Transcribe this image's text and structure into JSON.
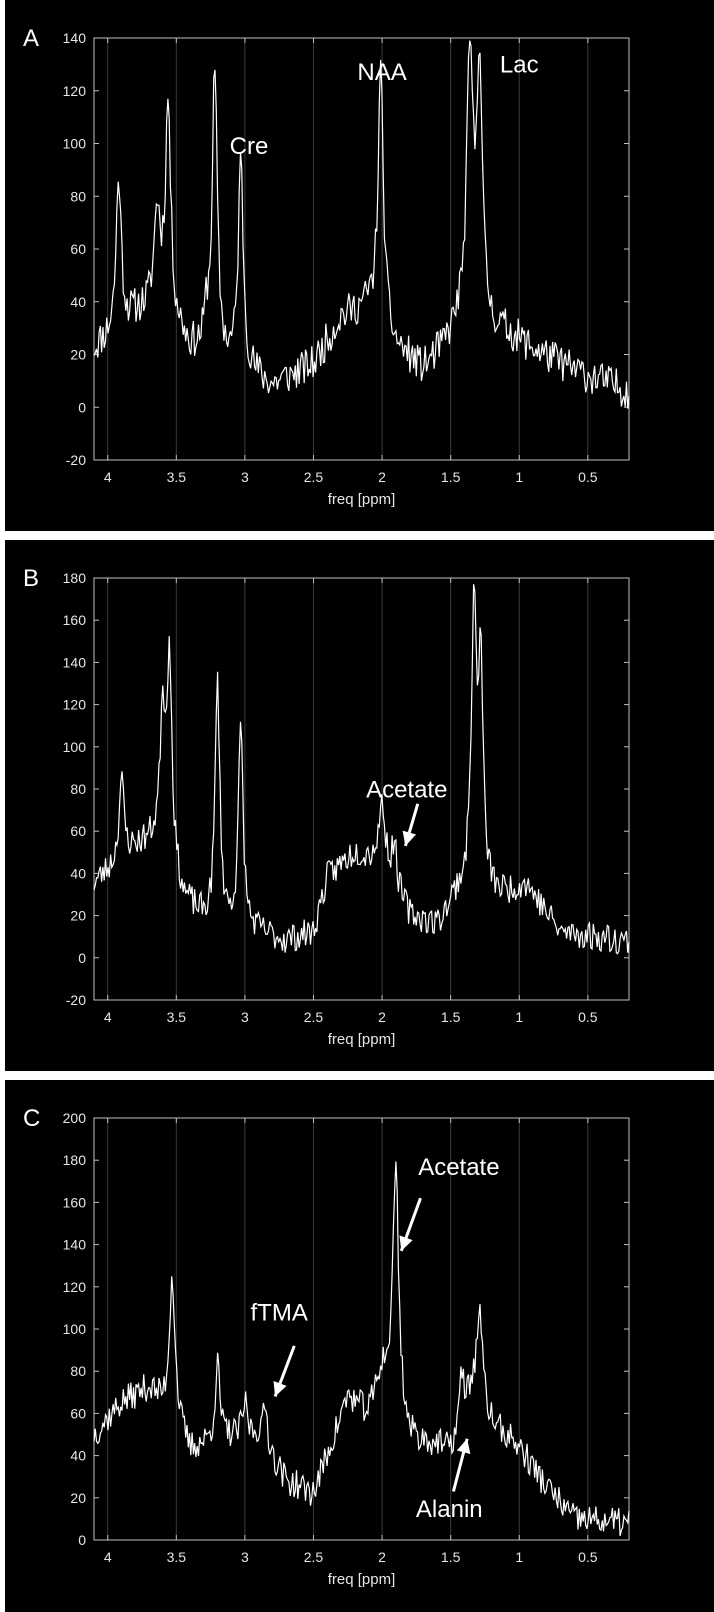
{
  "chart_data": [
    {
      "panel_label": "A",
      "type": "line",
      "xlabel": "freq [ppm]",
      "ylabel": "",
      "title": "",
      "x_reversed": true,
      "xlim": [
        0.2,
        4.1
      ],
      "ylim": [
        -20,
        140
      ],
      "xticks": [
        4,
        3.5,
        3,
        2.5,
        2,
        1.5,
        1,
        0.5
      ],
      "xtick_labels": [
        "4",
        "3.5",
        "3",
        "2.5",
        "2",
        "1.5",
        "1",
        "0.5"
      ],
      "yticks": [
        -20,
        0,
        20,
        40,
        60,
        80,
        100,
        120,
        140
      ],
      "ytick_labels": [
        "-20",
        "0",
        "20",
        "40",
        "60",
        "80",
        "100",
        "120",
        "140"
      ],
      "grid": "vertical",
      "line_color": "#ffffff",
      "baseline": [
        [
          4.1,
          22
        ],
        [
          3.8,
          35
        ],
        [
          3.6,
          40
        ],
        [
          3.4,
          22
        ],
        [
          3.0,
          14
        ],
        [
          2.8,
          8
        ],
        [
          2.5,
          16
        ],
        [
          2.3,
          34
        ],
        [
          2.1,
          38
        ],
        [
          1.9,
          22
        ],
        [
          1.7,
          14
        ],
        [
          1.55,
          22
        ],
        [
          1.45,
          30
        ],
        [
          1.1,
          28
        ],
        [
          0.9,
          22
        ],
        [
          0.6,
          14
        ],
        [
          0.2,
          6
        ]
      ],
      "peaks": [
        {
          "x": 3.92,
          "height": 58,
          "width": 0.022
        },
        {
          "x": 3.64,
          "height": 35,
          "width": 0.025
        },
        {
          "x": 3.56,
          "height": 78,
          "width": 0.022
        },
        {
          "x": 3.28,
          "height": 12,
          "width": 0.02
        },
        {
          "x": 3.22,
          "height": 108,
          "width": 0.022
        },
        {
          "x": 3.03,
          "height": 78,
          "width": 0.022
        },
        {
          "x": 2.01,
          "height": 95,
          "width": 0.024
        },
        {
          "x": 1.36,
          "height": 100,
          "width": 0.028
        },
        {
          "x": 1.29,
          "height": 100,
          "width": 0.024
        }
      ],
      "noise_amplitude": 7,
      "noise_seed": 11,
      "annotations": [
        {
          "text": "Cre",
          "x": 2.97,
          "y": 96
        },
        {
          "text": "NAA",
          "x": 2.0,
          "y": 124
        },
        {
          "text": "Lac",
          "x": 1.0,
          "y": 127
        }
      ]
    },
    {
      "panel_label": "B",
      "type": "line",
      "xlabel": "freq [ppm]",
      "ylabel": "",
      "title": "",
      "x_reversed": true,
      "xlim": [
        0.2,
        4.1
      ],
      "ylim": [
        -20,
        180
      ],
      "xticks": [
        4,
        3.5,
        3,
        2.5,
        2,
        1.5,
        1,
        0.5
      ],
      "xtick_labels": [
        "4",
        "3.5",
        "3",
        "2.5",
        "2",
        "1.5",
        "1",
        "0.5"
      ],
      "yticks": [
        -20,
        0,
        20,
        40,
        60,
        80,
        100,
        120,
        140,
        160,
        180
      ],
      "ytick_labels": [
        "-20",
        "0",
        "20",
        "40",
        "60",
        "80",
        "100",
        "120",
        "140",
        "160",
        "180"
      ],
      "grid": "vertical",
      "line_color": "#ffffff",
      "baseline": [
        [
          4.1,
          35
        ],
        [
          3.8,
          52
        ],
        [
          3.6,
          58
        ],
        [
          3.45,
          28
        ],
        [
          3.3,
          18
        ],
        [
          3.0,
          14
        ],
        [
          2.7,
          8
        ],
        [
          2.5,
          12
        ],
        [
          2.4,
          38
        ],
        [
          2.2,
          50
        ],
        [
          2.0,
          44
        ],
        [
          1.8,
          20
        ],
        [
          1.6,
          15
        ],
        [
          1.45,
          30
        ],
        [
          1.1,
          30
        ],
        [
          0.95,
          35
        ],
        [
          0.7,
          12
        ],
        [
          0.2,
          8
        ]
      ],
      "peaks": [
        {
          "x": 3.9,
          "height": 38,
          "width": 0.022
        },
        {
          "x": 3.6,
          "height": 60,
          "width": 0.02
        },
        {
          "x": 3.55,
          "height": 98,
          "width": 0.02
        },
        {
          "x": 3.2,
          "height": 115,
          "width": 0.02
        },
        {
          "x": 3.03,
          "height": 95,
          "width": 0.02
        },
        {
          "x": 2.0,
          "height": 28,
          "width": 0.03
        },
        {
          "x": 1.91,
          "height": 20,
          "width": 0.02
        },
        {
          "x": 1.33,
          "height": 132,
          "width": 0.024
        },
        {
          "x": 1.28,
          "height": 100,
          "width": 0.02
        }
      ],
      "noise_amplitude": 7,
      "noise_seed": 23,
      "annotations": [
        {
          "text": "Acetate",
          "x": 1.82,
          "y": 76,
          "arrow_from": [
            1.74,
            73
          ],
          "arrow_to": [
            1.83,
            53
          ]
        }
      ]
    },
    {
      "panel_label": "C",
      "type": "line",
      "xlabel": "freq [ppm]",
      "ylabel": "",
      "title": "",
      "x_reversed": true,
      "xlim": [
        0.2,
        4.1
      ],
      "ylim": [
        0,
        200
      ],
      "xticks": [
        4,
        3.5,
        3,
        2.5,
        2,
        1.5,
        1,
        0.5
      ],
      "xtick_labels": [
        "4",
        "3.5",
        "3",
        "2.5",
        "2",
        "1.5",
        "1",
        "0.5"
      ],
      "yticks": [
        0,
        20,
        40,
        60,
        80,
        100,
        120,
        140,
        160,
        180,
        200
      ],
      "ytick_labels": [
        "0",
        "20",
        "40",
        "60",
        "80",
        "100",
        "120",
        "140",
        "160",
        "180",
        "200"
      ],
      "grid": "vertical",
      "line_color": "#ffffff",
      "baseline": [
        [
          4.1,
          50
        ],
        [
          3.9,
          65
        ],
        [
          3.7,
          72
        ],
        [
          3.5,
          55
        ],
        [
          3.4,
          42
        ],
        [
          3.2,
          48
        ],
        [
          2.9,
          50
        ],
        [
          2.7,
          28
        ],
        [
          2.5,
          22
        ],
        [
          2.4,
          40
        ],
        [
          2.25,
          68
        ],
        [
          2.1,
          60
        ],
        [
          2.0,
          80
        ],
        [
          1.8,
          48
        ],
        [
          1.6,
          45
        ],
        [
          1.5,
          42
        ],
        [
          1.35,
          70
        ],
        [
          1.2,
          55
        ],
        [
          1.0,
          44
        ],
        [
          0.8,
          25
        ],
        [
          0.6,
          10
        ],
        [
          0.2,
          8
        ]
      ],
      "peaks": [
        {
          "x": 3.53,
          "height": 68,
          "width": 0.025
        },
        {
          "x": 3.2,
          "height": 35,
          "width": 0.02
        },
        {
          "x": 3.0,
          "height": 15,
          "width": 0.02
        },
        {
          "x": 2.85,
          "height": 18,
          "width": 0.02
        },
        {
          "x": 1.9,
          "height": 115,
          "width": 0.025
        },
        {
          "x": 1.42,
          "height": 20,
          "width": 0.02
        },
        {
          "x": 1.29,
          "height": 45,
          "width": 0.025
        }
      ],
      "noise_amplitude": 7,
      "noise_seed": 37,
      "annotations": [
        {
          "text": "Acetate",
          "x": 1.44,
          "y": 173,
          "arrow_from": [
            1.72,
            162
          ],
          "arrow_to": [
            1.86,
            137
          ]
        },
        {
          "text": "fTMA",
          "x": 2.75,
          "y": 104,
          "arrow_from": [
            2.64,
            92
          ],
          "arrow_to": [
            2.78,
            68
          ]
        },
        {
          "text": "Alanin",
          "x": 1.51,
          "y": 11,
          "arrow_from": [
            1.48,
            23
          ],
          "arrow_to": [
            1.38,
            48
          ]
        }
      ]
    }
  ]
}
